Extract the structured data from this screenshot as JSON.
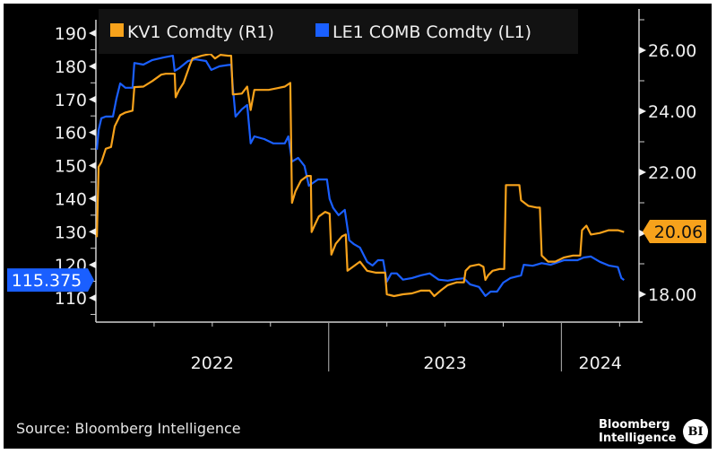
{
  "chart_data": {
    "type": "line",
    "title": "",
    "legend": {
      "placement": "top-left",
      "entries": [
        {
          "label": "KV1 Comdty (R1)",
          "color": "#f7a21b",
          "axis": "right"
        },
        {
          "label": "LE1 COMB Comdty (L1)",
          "color": "#1a5fff",
          "axis": "left"
        }
      ]
    },
    "x_axis": {
      "unit": "months since Jan 2022",
      "range": [
        0,
        28
      ],
      "year_labels": [
        {
          "label": "2022",
          "start": 0,
          "end": 12
        },
        {
          "label": "2023",
          "start": 12,
          "end": 24
        },
        {
          "label": "2024",
          "start": 24,
          "end": 28
        }
      ],
      "quarter_ticks": [
        3,
        6,
        9,
        15,
        18,
        21,
        27
      ],
      "year_dividers": [
        12,
        24
      ]
    },
    "left_axis": {
      "range": [
        102,
        198
      ],
      "ticks": [
        110,
        120,
        130,
        140,
        150,
        160,
        170,
        180,
        190
      ],
      "minor_step": 5
    },
    "right_axis": {
      "range": [
        16.8,
        27
      ],
      "ticks": [
        "18.00",
        "20.00",
        "22.00",
        "24.00",
        "26.00"
      ],
      "tick_values": [
        18,
        20,
        22,
        24,
        26
      ],
      "minor_step": 1,
      "hidden_ticks": [
        20
      ]
    },
    "series": [
      {
        "name": "LE1 COMB Comdty (L1)",
        "axis": "left",
        "color": "#1a5fff",
        "last_value_label": "115.375",
        "last_value": 115.375,
        "points": [
          [
            0.05,
            154.8
          ],
          [
            0.14,
            160.7
          ],
          [
            0.28,
            164.3
          ],
          [
            0.51,
            164.8
          ],
          [
            0.88,
            164.8
          ],
          [
            1.06,
            170.2
          ],
          [
            1.25,
            174.8
          ],
          [
            1.52,
            173.5
          ],
          [
            1.89,
            173.5
          ],
          [
            1.98,
            181.0
          ],
          [
            2.45,
            180.5
          ],
          [
            2.91,
            181.9
          ],
          [
            3.51,
            182.7
          ],
          [
            3.97,
            183.2
          ],
          [
            4.06,
            178.6
          ],
          [
            4.29,
            179.4
          ],
          [
            4.75,
            181.6
          ],
          [
            5.12,
            182.1
          ],
          [
            5.68,
            181.6
          ],
          [
            5.95,
            178.9
          ],
          [
            6.37,
            180.0
          ],
          [
            6.97,
            180.5
          ],
          [
            7.06,
            173.7
          ],
          [
            7.2,
            164.8
          ],
          [
            7.52,
            167.0
          ],
          [
            7.8,
            168.3
          ],
          [
            7.98,
            156.7
          ],
          [
            8.17,
            158.8
          ],
          [
            8.68,
            158.0
          ],
          [
            9.14,
            156.7
          ],
          [
            9.74,
            156.7
          ],
          [
            9.92,
            158.8
          ],
          [
            10.11,
            151.2
          ],
          [
            10.43,
            152.3
          ],
          [
            10.75,
            149.9
          ],
          [
            10.98,
            143.9
          ],
          [
            11.45,
            145.8
          ],
          [
            11.91,
            145.8
          ],
          [
            12.05,
            139.9
          ],
          [
            12.23,
            137.2
          ],
          [
            12.51,
            135.0
          ],
          [
            12.83,
            136.6
          ],
          [
            13.06,
            127.4
          ],
          [
            13.29,
            126.3
          ],
          [
            13.61,
            125.2
          ],
          [
            13.98,
            120.9
          ],
          [
            14.26,
            119.8
          ],
          [
            14.54,
            121.4
          ],
          [
            14.81,
            121.4
          ],
          [
            15.0,
            114.9
          ],
          [
            15.23,
            117.4
          ],
          [
            15.51,
            117.4
          ],
          [
            15.83,
            115.5
          ],
          [
            16.29,
            116.0
          ],
          [
            16.75,
            116.8
          ],
          [
            17.21,
            117.4
          ],
          [
            17.67,
            115.5
          ],
          [
            18.14,
            115.2
          ],
          [
            18.6,
            115.7
          ],
          [
            18.97,
            115.9
          ],
          [
            19.29,
            114.1
          ],
          [
            19.75,
            113.3
          ],
          [
            20.08,
            110.6
          ],
          [
            20.35,
            111.9
          ],
          [
            20.68,
            111.9
          ],
          [
            21.0,
            114.6
          ],
          [
            21.37,
            116.0
          ],
          [
            21.92,
            116.8
          ],
          [
            22.06,
            120.0
          ],
          [
            22.52,
            119.7
          ],
          [
            22.98,
            120.5
          ],
          [
            23.44,
            120.0
          ],
          [
            24.14,
            121.4
          ],
          [
            24.83,
            121.4
          ],
          [
            25.15,
            122.2
          ],
          [
            25.52,
            122.5
          ],
          [
            25.98,
            120.9
          ],
          [
            26.44,
            119.8
          ],
          [
            26.91,
            119.3
          ],
          [
            27.09,
            116.0
          ],
          [
            27.23,
            115.4
          ]
        ]
      },
      {
        "name": "KV1 Comdty (R1)",
        "axis": "right",
        "color": "#f7a21b",
        "last_value_label": "20.06",
        "last_value": 20.06,
        "points": [
          [
            0.05,
            19.87
          ],
          [
            0.14,
            22.18
          ],
          [
            0.28,
            22.33
          ],
          [
            0.51,
            22.77
          ],
          [
            0.78,
            22.83
          ],
          [
            0.97,
            23.51
          ],
          [
            1.25,
            23.87
          ],
          [
            1.52,
            23.96
          ],
          [
            1.89,
            24.02
          ],
          [
            1.98,
            24.79
          ],
          [
            2.45,
            24.81
          ],
          [
            2.91,
            24.99
          ],
          [
            3.37,
            25.2
          ],
          [
            3.6,
            25.23
          ],
          [
            4.06,
            25.23
          ],
          [
            4.11,
            24.46
          ],
          [
            4.29,
            24.7
          ],
          [
            4.52,
            24.93
          ],
          [
            4.85,
            25.53
          ],
          [
            4.98,
            25.73
          ],
          [
            5.45,
            25.82
          ],
          [
            5.91,
            25.88
          ],
          [
            6.14,
            25.73
          ],
          [
            6.42,
            25.85
          ],
          [
            6.83,
            25.82
          ],
          [
            6.97,
            25.82
          ],
          [
            7.06,
            24.55
          ],
          [
            7.52,
            24.58
          ],
          [
            7.8,
            24.81
          ],
          [
            7.98,
            24.04
          ],
          [
            8.17,
            24.7
          ],
          [
            8.91,
            24.7
          ],
          [
            9.37,
            24.76
          ],
          [
            9.74,
            24.81
          ],
          [
            10.02,
            24.93
          ],
          [
            10.11,
            21.0
          ],
          [
            10.29,
            21.38
          ],
          [
            10.57,
            21.73
          ],
          [
            10.89,
            21.88
          ],
          [
            11.08,
            21.88
          ],
          [
            11.12,
            20.04
          ],
          [
            11.31,
            20.31
          ],
          [
            11.49,
            20.55
          ],
          [
            11.82,
            20.7
          ],
          [
            12.05,
            20.64
          ],
          [
            12.14,
            19.3
          ],
          [
            12.37,
            19.66
          ],
          [
            12.69,
            19.9
          ],
          [
            12.88,
            19.96
          ],
          [
            12.97,
            18.77
          ],
          [
            13.29,
            18.92
          ],
          [
            13.61,
            19.07
          ],
          [
            13.98,
            18.77
          ],
          [
            14.44,
            18.71
          ],
          [
            14.91,
            18.71
          ],
          [
            15.0,
            18.0
          ],
          [
            15.37,
            17.94
          ],
          [
            15.83,
            18.0
          ],
          [
            16.29,
            18.03
          ],
          [
            16.75,
            18.12
          ],
          [
            17.21,
            18.12
          ],
          [
            17.44,
            17.94
          ],
          [
            17.77,
            18.12
          ],
          [
            18.14,
            18.3
          ],
          [
            18.6,
            18.39
          ],
          [
            18.97,
            18.39
          ],
          [
            19.06,
            18.77
          ],
          [
            19.29,
            18.92
          ],
          [
            19.75,
            18.98
          ],
          [
            19.98,
            18.9
          ],
          [
            20.08,
            18.47
          ],
          [
            20.22,
            18.62
          ],
          [
            20.45,
            18.77
          ],
          [
            20.82,
            18.83
          ],
          [
            21.05,
            18.83
          ],
          [
            21.14,
            21.58
          ],
          [
            21.46,
            21.58
          ],
          [
            21.83,
            21.58
          ],
          [
            21.92,
            21.08
          ],
          [
            22.29,
            20.9
          ],
          [
            22.75,
            20.84
          ],
          [
            22.89,
            20.84
          ],
          [
            22.98,
            19.27
          ],
          [
            23.31,
            19.07
          ],
          [
            23.68,
            19.07
          ],
          [
            24.14,
            19.21
          ],
          [
            24.6,
            19.27
          ],
          [
            24.97,
            19.27
          ],
          [
            25.06,
            20.1
          ],
          [
            25.29,
            20.25
          ],
          [
            25.52,
            19.96
          ],
          [
            25.98,
            20.01
          ],
          [
            26.44,
            20.1
          ],
          [
            26.91,
            20.1
          ],
          [
            27.23,
            20.04
          ]
        ]
      }
    ]
  },
  "footer": {
    "source": "Source: Bloomberg Intelligence",
    "brand_line1": "Bloomberg",
    "brand_line2": "Intelligence",
    "brand_logo": "BI"
  }
}
